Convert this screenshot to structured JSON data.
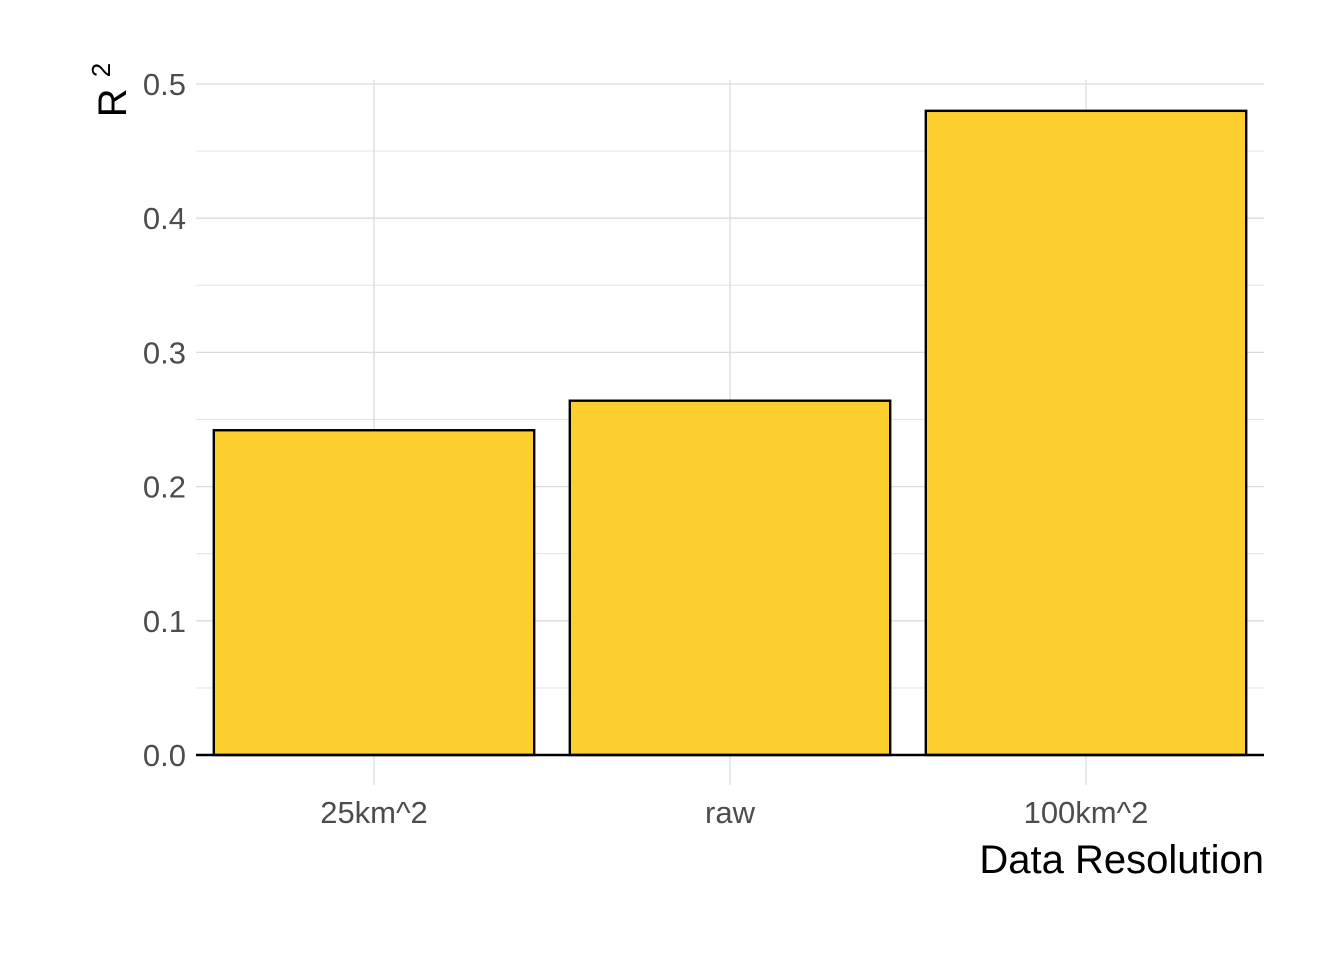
{
  "chart_data": {
    "type": "bar",
    "categories": [
      "25km^2",
      "raw",
      "100km^2"
    ],
    "values": [
      0.242,
      0.264,
      0.48
    ],
    "title": "",
    "xlabel": "Data Resolution",
    "ylabel_base": "R",
    "ylabel_superscript": "2",
    "ylim": [
      0,
      0.5
    ],
    "yticks": [
      "0.0",
      "0.1",
      "0.2",
      "0.3",
      "0.4",
      "0.5"
    ],
    "grid": true,
    "legend": "none",
    "bar_color": "#FCCE2E",
    "bar_outline_color": "#000000"
  }
}
